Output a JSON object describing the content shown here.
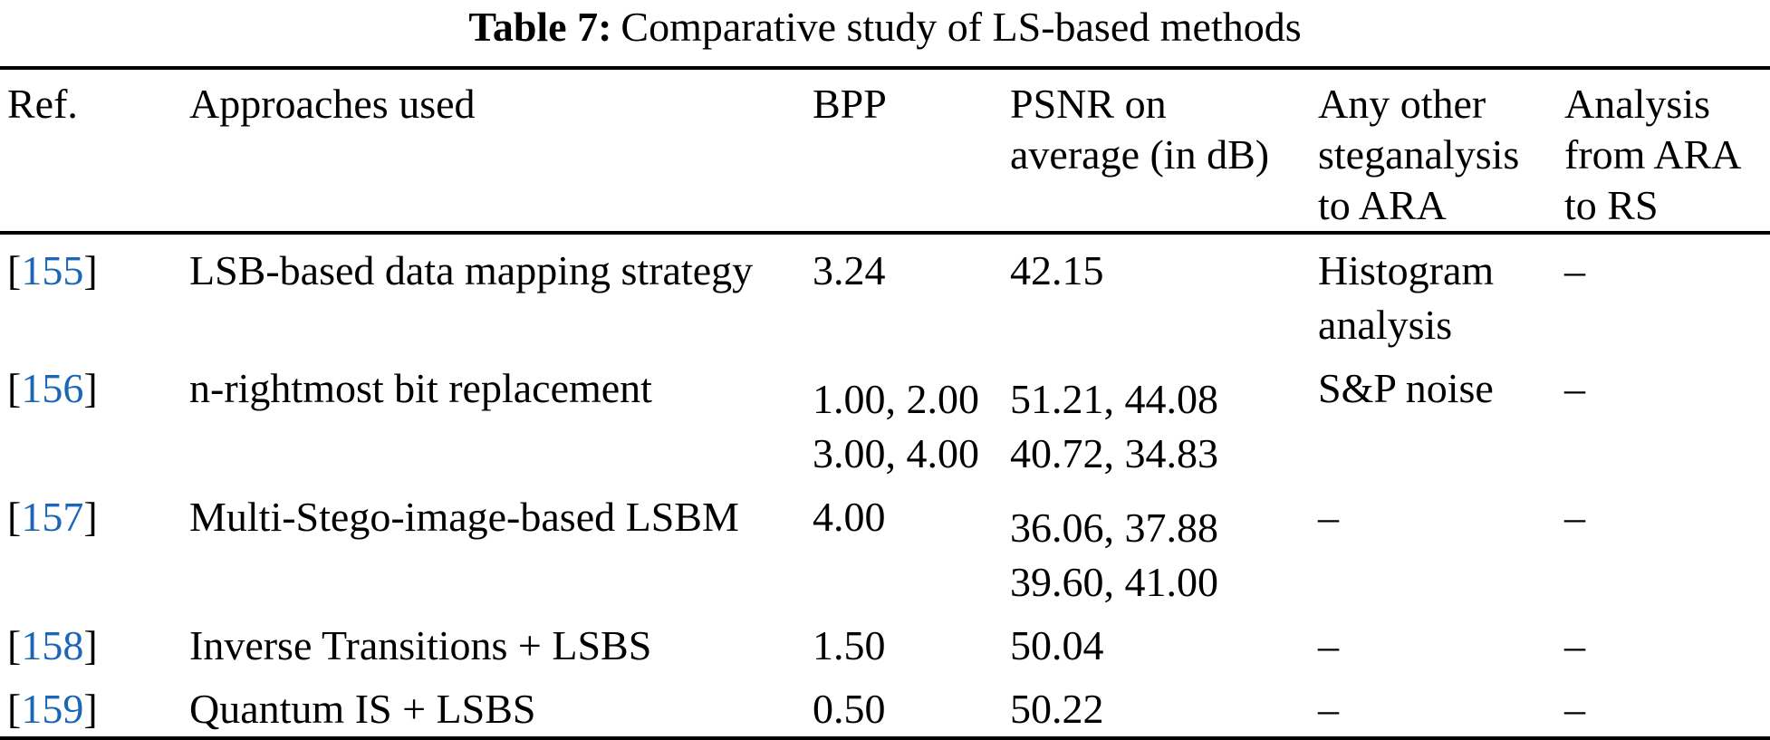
{
  "colors": {
    "link": "#1b66b5",
    "text": "#000000",
    "background": "#ffffff"
  },
  "caption": {
    "label": "Table 7:",
    "text": "Comparative study of LS-based methods"
  },
  "punctuation": {
    "bracket_open": "[",
    "bracket_close": "]"
  },
  "columns": [
    {
      "label": "Ref."
    },
    {
      "label": "Approaches used"
    },
    {
      "label": "BPP"
    },
    {
      "label": "PSNR on\naverage (in dB)"
    },
    {
      "label": "Any other\nsteganalysis\nto ARA"
    },
    {
      "label": "Analysis\nfrom ARA\nto RS"
    }
  ],
  "rows": [
    {
      "ref": "155",
      "approach": "LSB-based data mapping strategy",
      "bpp": "3.24",
      "psnr": "42.15",
      "steganalysis": "Histogram\nanalysis",
      "analysis": "–"
    },
    {
      "ref": "156",
      "approach": "n-rightmost bit replacement",
      "bpp": "1.00, 2.00\n3.00, 4.00",
      "psnr": "51.21, 44.08\n40.72, 34.83",
      "steganalysis": "S&P noise",
      "analysis": "–"
    },
    {
      "ref": "157",
      "approach": "Multi-Stego-image-based LSBM",
      "bpp": "4.00",
      "psnr": "36.06, 37.88\n39.60, 41.00",
      "steganalysis": "–",
      "analysis": "–"
    },
    {
      "ref": "158",
      "approach": "Inverse Transitions + LSBS",
      "bpp": "1.50",
      "psnr": "50.04",
      "steganalysis": "–",
      "analysis": "–"
    },
    {
      "ref": "159",
      "approach": "Quantum IS + LSBS",
      "bpp": "0.50",
      "psnr": "50.22",
      "steganalysis": "–",
      "analysis": "–"
    }
  ]
}
